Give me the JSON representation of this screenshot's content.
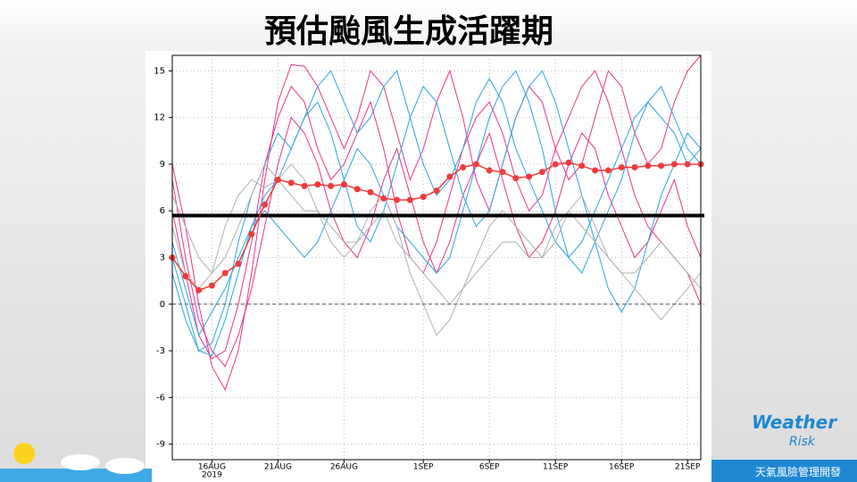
{
  "title": "預估颱風生成活躍期",
  "logo": {
    "brand_a": "Weather",
    "brand_b": "Risk",
    "tagline": "天氣風險管理開發"
  },
  "chart_data": {
    "type": "line",
    "x": [
      "2019-08-13",
      "2019-08-14",
      "2019-08-15",
      "2019-08-16",
      "2019-08-17",
      "2019-08-18",
      "2019-08-19",
      "2019-08-20",
      "2019-08-21",
      "2019-08-22",
      "2019-08-23",
      "2019-08-24",
      "2019-08-25",
      "2019-08-26",
      "2019-08-27",
      "2019-08-28",
      "2019-08-29",
      "2019-08-30",
      "2019-08-31",
      "2019-09-01",
      "2019-09-02",
      "2019-09-03",
      "2019-09-04",
      "2019-09-05",
      "2019-09-06",
      "2019-09-07",
      "2019-09-08",
      "2019-09-09",
      "2019-09-10",
      "2019-09-11",
      "2019-09-12",
      "2019-09-13",
      "2019-09-14",
      "2019-09-15",
      "2019-09-16",
      "2019-09-17",
      "2019-09-18",
      "2019-09-19",
      "2019-09-20",
      "2019-09-21",
      "2019-09-22"
    ],
    "xlim": [
      "2019-08-13",
      "2019-09-22"
    ],
    "xticks": [
      {
        "value": "2019-08-16",
        "label": "16AUG"
      },
      {
        "value": "2019-08-21",
        "label": "21AUG"
      },
      {
        "value": "2019-08-26",
        "label": "26AUG"
      },
      {
        "value": "2019-09-01",
        "label": "1SEP"
      },
      {
        "value": "2019-09-06",
        "label": "6SEP"
      },
      {
        "value": "2019-09-11",
        "label": "11SEP"
      },
      {
        "value": "2019-09-16",
        "label": "16SEP"
      },
      {
        "value": "2019-09-21",
        "label": "21SEP"
      }
    ],
    "x_year_label": "2019",
    "ylim": [
      -10,
      16
    ],
    "yticks": [
      -9,
      -6,
      -3,
      0,
      3,
      6,
      9,
      12,
      15
    ],
    "grid": true,
    "reference_lines": [
      {
        "value": 5.7,
        "color": "#000000",
        "style": "solid"
      },
      {
        "value": 0,
        "color": "#555555",
        "style": "dashed"
      }
    ],
    "series": [
      {
        "color": "#e8338a",
        "values": [
          9,
          5,
          0,
          -4,
          -5.5,
          -3,
          2,
          8,
          13,
          15.4,
          15.3,
          14,
          12,
          10,
          12,
          15,
          14,
          11,
          8,
          10,
          13,
          15,
          12,
          8,
          6,
          9,
          12,
          14,
          13,
          10,
          8,
          9,
          12,
          15,
          14,
          11,
          9,
          10,
          13,
          15,
          16
        ]
      },
      {
        "color": "#e8338a",
        "values": [
          8,
          3,
          -1,
          -3,
          -4,
          -2,
          1,
          5,
          9,
          12,
          11,
          9,
          6,
          4,
          3,
          5,
          8,
          10,
          7,
          4,
          2,
          4,
          7,
          9,
          11,
          8,
          5,
          3,
          4,
          6,
          9,
          11,
          10,
          7,
          5,
          3,
          4,
          6,
          8,
          5,
          3
        ]
      },
      {
        "color": "#e8338a",
        "values": [
          6,
          2,
          -2,
          -3.5,
          -3,
          0,
          4,
          9,
          12,
          14,
          13,
          10,
          8,
          9,
          11,
          13,
          10,
          6,
          3,
          2,
          4,
          7,
          10,
          12,
          13,
          11,
          8,
          6,
          7,
          10,
          12,
          14,
          15,
          13,
          10,
          7,
          5,
          4,
          3,
          2,
          0
        ]
      },
      {
        "color": "#2aa4e0",
        "values": [
          2,
          -1,
          -3,
          -3.3,
          -1,
          2,
          5,
          7,
          8,
          10,
          12,
          13,
          11,
          8,
          5,
          4,
          6,
          9,
          12,
          14,
          13,
          10,
          7,
          5,
          6,
          9,
          12,
          14,
          15,
          13,
          10,
          7,
          4,
          1,
          -0.5,
          1,
          4,
          7,
          9,
          11,
          10
        ]
      },
      {
        "color": "#2aa4e0",
        "values": [
          4,
          1,
          -2,
          -0.5,
          1,
          3,
          5,
          6,
          5,
          4,
          3,
          4,
          6,
          8,
          10,
          9,
          7,
          5,
          4,
          3,
          2,
          3,
          6,
          9,
          12,
          14,
          15,
          13,
          10,
          6,
          3,
          2,
          4,
          6,
          8,
          11,
          13,
          14,
          12,
          10,
          9
        ]
      },
      {
        "color": "#2aa4e0",
        "values": [
          3,
          0,
          -3,
          -2.5,
          0,
          4,
          7,
          9,
          11,
          10,
          12,
          14,
          15,
          13,
          11,
          12,
          14,
          15,
          12,
          9,
          7,
          8,
          10,
          13,
          14.5,
          13,
          10,
          8,
          6,
          4,
          3,
          4,
          6,
          8,
          10,
          12,
          13,
          12,
          11,
          9,
          10
        ]
      },
      {
        "color": "#b0b0b0",
        "values": [
          5,
          2,
          1,
          2,
          5,
          7,
          8,
          7.5,
          8,
          9,
          8,
          6,
          4,
          3,
          4,
          6,
          7,
          5,
          2,
          0,
          -2,
          -1,
          1,
          3,
          5,
          6,
          5,
          4,
          3,
          4,
          6,
          7,
          5,
          3,
          2,
          1,
          0,
          -1,
          0,
          1,
          2
        ]
      },
      {
        "color": "#b0b0b0",
        "values": [
          7,
          5,
          3,
          2,
          3,
          5,
          7,
          9,
          8,
          7,
          6,
          6,
          5,
          4,
          4,
          5,
          6,
          4,
          3,
          2,
          1,
          0,
          1,
          2,
          3,
          4,
          4,
          3,
          3,
          5,
          6,
          5,
          4,
          3,
          2,
          2,
          3,
          4,
          3,
          2,
          1
        ]
      },
      {
        "color": "#ee3b3b",
        "markers": true,
        "values": [
          3,
          1.8,
          0.9,
          1.2,
          2.0,
          2.6,
          4.5,
          6.4,
          8.0,
          7.8,
          7.6,
          7.7,
          7.6,
          7.7,
          7.4,
          7.2,
          6.8,
          6.7,
          6.7,
          6.9,
          7.3,
          8.2,
          8.8,
          9.0,
          8.6,
          8.5,
          8.1,
          8.2,
          8.5,
          9.0,
          9.1,
          8.9,
          8.6,
          8.6,
          8.8,
          8.8,
          8.9,
          8.9,
          9.0,
          9.0,
          9.0
        ]
      }
    ]
  }
}
